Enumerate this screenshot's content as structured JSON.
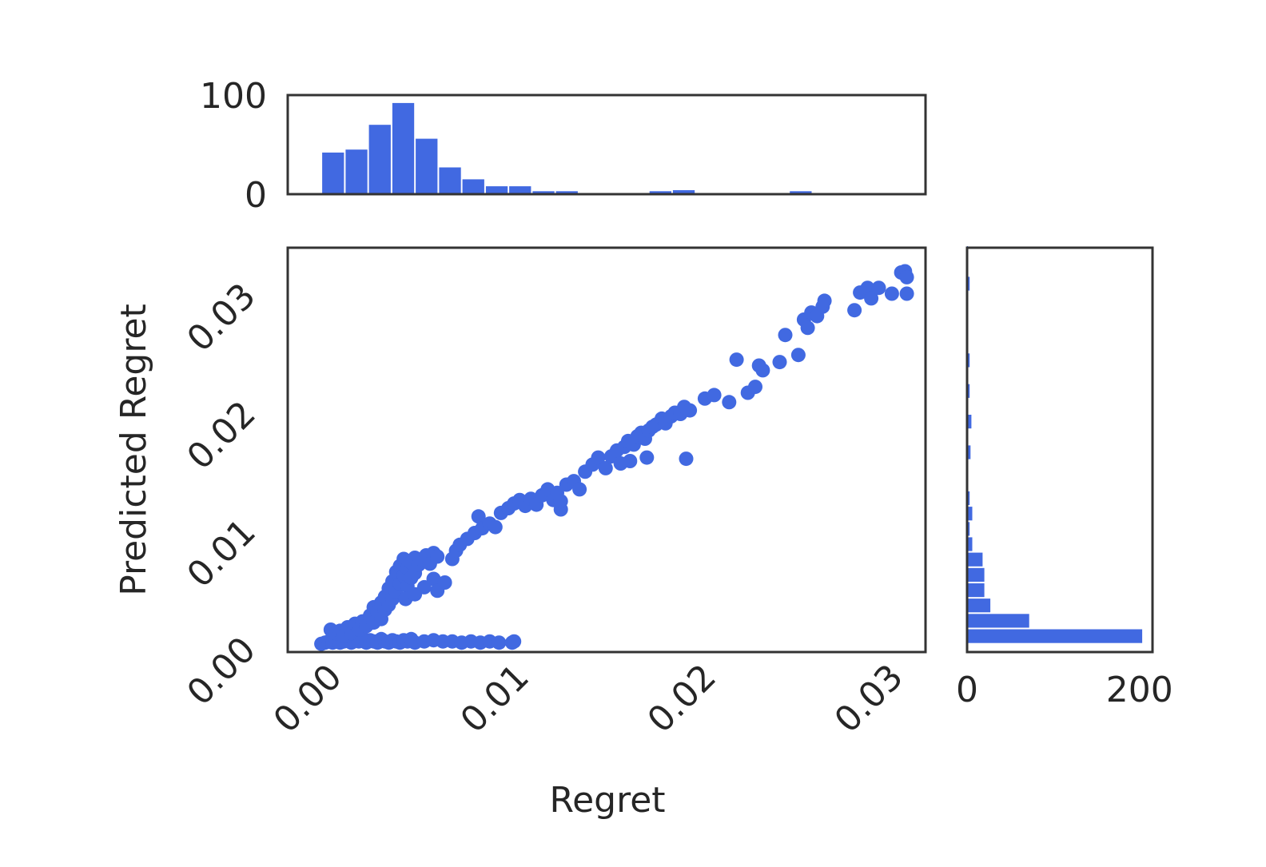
{
  "chart_data": [
    {
      "id": "scatter",
      "type": "scatter",
      "xlabel": "Regret",
      "ylabel": "Predicted Regret",
      "xlim": [
        -0.0018,
        0.0323
      ],
      "ylim": [
        -0.0007,
        0.0336
      ],
      "xticks": [
        0.0,
        0.01,
        0.02,
        0.03
      ],
      "xtick_labels": [
        "0.00",
        "0.01",
        "0.02",
        "0.03"
      ],
      "yticks": [
        0.0,
        0.01,
        0.02,
        0.03
      ],
      "ytick_labels": [
        "0.00",
        "0.01",
        "0.02",
        "0.03"
      ],
      "grid": false,
      "color": "#4169e1",
      "points": [
        [
          0.0,
          0.0
        ],
        [
          0.0002,
          0.0001
        ],
        [
          0.0004,
          0.0002
        ],
        [
          0.0006,
          0.0001
        ],
        [
          0.0008,
          0.0003
        ],
        [
          0.001,
          0.0001
        ],
        [
          0.0012,
          0.0002
        ],
        [
          0.0014,
          0.0004
        ],
        [
          0.0016,
          0.0001
        ],
        [
          0.0018,
          0.0003
        ],
        [
          0.002,
          0.0002
        ],
        [
          0.0022,
          0.0005
        ],
        [
          0.0024,
          0.0001
        ],
        [
          0.0026,
          0.0003
        ],
        [
          0.0028,
          0.0002
        ],
        [
          0.003,
          0.0001
        ],
        [
          0.0032,
          0.0004
        ],
        [
          0.0034,
          0.0002
        ],
        [
          0.0036,
          0.0001
        ],
        [
          0.0038,
          0.0003
        ],
        [
          0.004,
          0.0002
        ],
        [
          0.0042,
          0.0001
        ],
        [
          0.0044,
          0.0003
        ],
        [
          0.0046,
          0.0002
        ],
        [
          0.0048,
          0.0004
        ],
        [
          0.005,
          0.0001
        ],
        [
          0.0055,
          0.0002
        ],
        [
          0.006,
          0.0003
        ],
        [
          0.0065,
          0.0002
        ],
        [
          0.007,
          0.0002
        ],
        [
          0.0075,
          0.0001
        ],
        [
          0.008,
          0.0002
        ],
        [
          0.0085,
          0.0001
        ],
        [
          0.009,
          0.0002
        ],
        [
          0.0095,
          0.0001
        ],
        [
          0.0102,
          0.0001
        ],
        [
          0.0103,
          0.0002
        ],
        [
          0.0005,
          0.0012
        ],
        [
          0.0008,
          0.0009
        ],
        [
          0.001,
          0.0011
        ],
        [
          0.0012,
          0.0007
        ],
        [
          0.0014,
          0.0014
        ],
        [
          0.0016,
          0.0009
        ],
        [
          0.0018,
          0.0017
        ],
        [
          0.002,
          0.0012
        ],
        [
          0.0022,
          0.0019
        ],
        [
          0.0024,
          0.0015
        ],
        [
          0.0026,
          0.0024
        ],
        [
          0.0028,
          0.0031
        ],
        [
          0.0028,
          0.0018
        ],
        [
          0.003,
          0.0027
        ],
        [
          0.0032,
          0.0035
        ],
        [
          0.0032,
          0.0021
        ],
        [
          0.0034,
          0.004
        ],
        [
          0.0034,
          0.0029
        ],
        [
          0.0036,
          0.0047
        ],
        [
          0.0036,
          0.0033
        ],
        [
          0.0038,
          0.0053
        ],
        [
          0.0038,
          0.0038
        ],
        [
          0.004,
          0.0061
        ],
        [
          0.004,
          0.0044
        ],
        [
          0.0042,
          0.0066
        ],
        [
          0.0042,
          0.0051
        ],
        [
          0.0044,
          0.0058
        ],
        [
          0.0044,
          0.0072
        ],
        [
          0.0046,
          0.0064
        ],
        [
          0.0046,
          0.0049
        ],
        [
          0.0048,
          0.0069
        ],
        [
          0.0048,
          0.0056
        ],
        [
          0.005,
          0.0073
        ],
        [
          0.005,
          0.006
        ],
        [
          0.0052,
          0.0067
        ],
        [
          0.0054,
          0.0071
        ],
        [
          0.0056,
          0.0075
        ],
        [
          0.0058,
          0.0068
        ],
        [
          0.006,
          0.0077
        ],
        [
          0.0062,
          0.0074
        ],
        [
          0.0045,
          0.0038
        ],
        [
          0.005,
          0.0042
        ],
        [
          0.0055,
          0.0048
        ],
        [
          0.006,
          0.0055
        ],
        [
          0.0062,
          0.0045
        ],
        [
          0.0066,
          0.0052
        ],
        [
          0.007,
          0.0072
        ],
        [
          0.0072,
          0.0079
        ],
        [
          0.0074,
          0.0084
        ],
        [
          0.0078,
          0.0089
        ],
        [
          0.0082,
          0.0094
        ],
        [
          0.0084,
          0.0108
        ],
        [
          0.0086,
          0.0098
        ],
        [
          0.009,
          0.0102
        ],
        [
          0.0093,
          0.0099
        ],
        [
          0.0096,
          0.0111
        ],
        [
          0.01,
          0.0115
        ],
        [
          0.0103,
          0.0119
        ],
        [
          0.0106,
          0.0122
        ],
        [
          0.0109,
          0.0117
        ],
        [
          0.0112,
          0.0123
        ],
        [
          0.0115,
          0.0118
        ],
        [
          0.0118,
          0.0126
        ],
        [
          0.0121,
          0.0131
        ],
        [
          0.0124,
          0.0122
        ],
        [
          0.0126,
          0.0128
        ],
        [
          0.0128,
          0.0114
        ],
        [
          0.0131,
          0.0135
        ],
        [
          0.0135,
          0.0138
        ],
        [
          0.0138,
          0.0131
        ],
        [
          0.0141,
          0.0146
        ],
        [
          0.0145,
          0.0152
        ],
        [
          0.0148,
          0.0158
        ],
        [
          0.0152,
          0.0149
        ],
        [
          0.0155,
          0.0159
        ],
        [
          0.0158,
          0.0164
        ],
        [
          0.016,
          0.0153
        ],
        [
          0.0162,
          0.0167
        ],
        [
          0.0164,
          0.0172
        ],
        [
          0.0167,
          0.0169
        ],
        [
          0.0169,
          0.0176
        ],
        [
          0.0171,
          0.0179
        ],
        [
          0.0173,
          0.0174
        ],
        [
          0.0175,
          0.0181
        ],
        [
          0.0177,
          0.0184
        ],
        [
          0.0179,
          0.0186
        ],
        [
          0.0182,
          0.0191
        ],
        [
          0.0184,
          0.0187
        ],
        [
          0.0187,
          0.0193
        ],
        [
          0.0189,
          0.0196
        ],
        [
          0.0192,
          0.0195
        ],
        [
          0.0194,
          0.0201
        ],
        [
          0.0197,
          0.0198
        ],
        [
          0.0165,
          0.0155
        ],
        [
          0.0174,
          0.0158
        ],
        [
          0.0195,
          0.0157
        ],
        [
          0.0128,
          0.0121
        ],
        [
          0.0205,
          0.0208
        ],
        [
          0.021,
          0.0211
        ],
        [
          0.0218,
          0.0205
        ],
        [
          0.0222,
          0.0241
        ],
        [
          0.0228,
          0.0213
        ],
        [
          0.0232,
          0.0218
        ],
        [
          0.0234,
          0.0236
        ],
        [
          0.0236,
          0.0232
        ],
        [
          0.0245,
          0.0239
        ],
        [
          0.0248,
          0.0262
        ],
        [
          0.0255,
          0.0245
        ],
        [
          0.0258,
          0.0275
        ],
        [
          0.026,
          0.0268
        ],
        [
          0.0262,
          0.0281
        ],
        [
          0.0265,
          0.0278
        ],
        [
          0.0268,
          0.0286
        ],
        [
          0.0269,
          0.0291
        ],
        [
          0.0285,
          0.0283
        ],
        [
          0.0288,
          0.0298
        ],
        [
          0.0292,
          0.0302
        ],
        [
          0.0294,
          0.0293
        ],
        [
          0.0298,
          0.0302
        ],
        [
          0.0305,
          0.0297
        ],
        [
          0.031,
          0.0315
        ],
        [
          0.0312,
          0.0316
        ],
        [
          0.0313,
          0.0311
        ],
        [
          0.0313,
          0.0297
        ]
      ]
    },
    {
      "id": "hist-x",
      "type": "bar",
      "orientation": "vertical",
      "bin_start": 0.0,
      "bin_width": 0.00125,
      "values": [
        42,
        45,
        70,
        92,
        56,
        27,
        15,
        8,
        8,
        3,
        3,
        0,
        1,
        1,
        3,
        4,
        1,
        0,
        1,
        0,
        3,
        0,
        1,
        0,
        1,
        0
      ],
      "ylim": [
        0,
        100
      ],
      "yticks": [
        0,
        100
      ],
      "ytick_labels": [
        "0",
        "100"
      ],
      "color": "#4169e1"
    },
    {
      "id": "hist-y",
      "type": "bar",
      "orientation": "horizontal",
      "bin_start": 0.0,
      "bin_width": 0.0013,
      "values": [
        203,
        72,
        27,
        20,
        20,
        18,
        6,
        3,
        6,
        3,
        0,
        0,
        4,
        0,
        5,
        0,
        3,
        0,
        3,
        0,
        1,
        0,
        0,
        3,
        0,
        1
      ],
      "xlim": [
        0,
        215
      ],
      "xticks": [
        0,
        200
      ],
      "xtick_labels": [
        "0",
        "200"
      ],
      "color": "#4169e1"
    }
  ]
}
